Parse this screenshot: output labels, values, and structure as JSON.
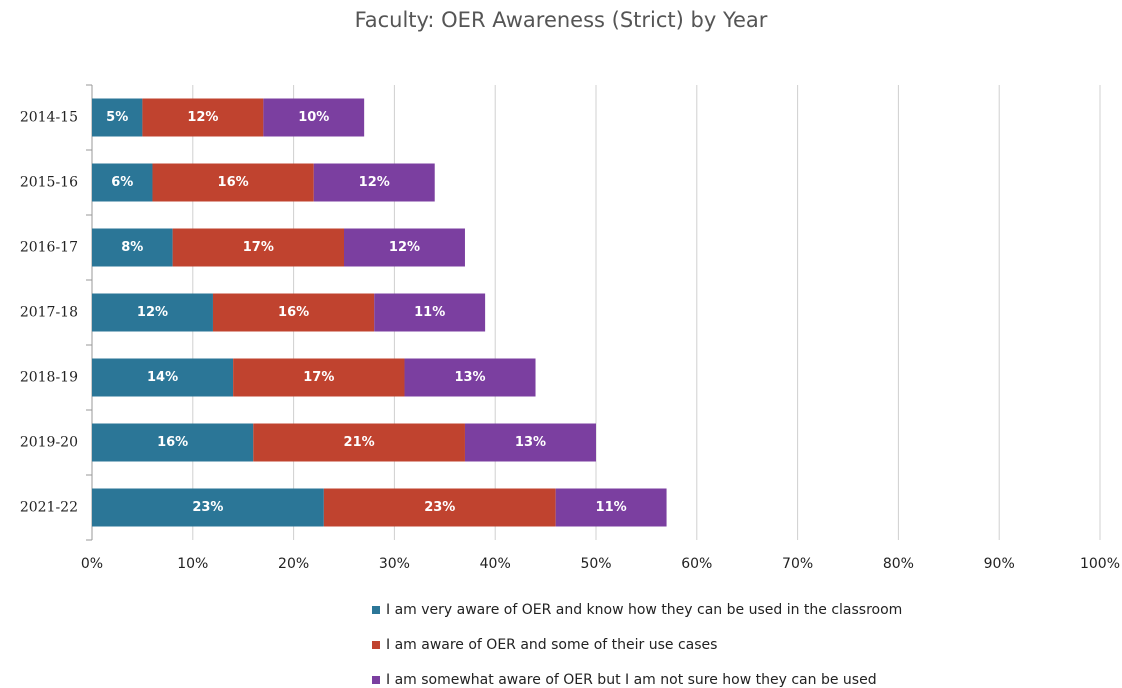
{
  "chart_data": {
    "type": "stacked-barh",
    "title": "Faculty: OER Awareness (Strict) by Year",
    "categories": [
      "2014-15",
      "2015-16",
      "2016-17",
      "2017-18",
      "2018-19",
      "2019-20",
      "2021-22"
    ],
    "series": [
      {
        "name": "I am very aware of OER and know how they can be used in the classroom",
        "color": "#2b7697",
        "values": [
          5,
          6,
          8,
          12,
          14,
          16,
          23
        ],
        "value_labels": [
          "5%",
          "6%",
          "8%",
          "12%",
          "14%",
          "16%",
          "23%"
        ]
      },
      {
        "name": "I am aware of OER and some of their use cases",
        "color": "#c0432f",
        "values": [
          12,
          16,
          17,
          16,
          17,
          21,
          23
        ],
        "value_labels": [
          "12%",
          "16%",
          "17%",
          "16%",
          "17%",
          "21%",
          "23%"
        ]
      },
      {
        "name": "I am somewhat aware of OER but I am not sure how they can be used",
        "color": "#7b3fa0",
        "values": [
          10,
          12,
          12,
          11,
          13,
          13,
          11
        ],
        "value_labels": [
          "10%",
          "12%",
          "12%",
          "11%",
          "13%",
          "13%",
          "11%"
        ]
      }
    ],
    "xlim": [
      0,
      100
    ],
    "xticks": [
      {
        "value": 0,
        "label": "0%"
      },
      {
        "value": 10,
        "label": "10%"
      },
      {
        "value": 20,
        "label": "20%"
      },
      {
        "value": 30,
        "label": "30%"
      },
      {
        "value": 40,
        "label": "40%"
      },
      {
        "value": 50,
        "label": "50%"
      },
      {
        "value": 60,
        "label": "60%"
      },
      {
        "value": 70,
        "label": "70%"
      },
      {
        "value": 80,
        "label": "80%"
      },
      {
        "value": 90,
        "label": "90%"
      },
      {
        "value": 100,
        "label": "100%"
      }
    ],
    "grid": true,
    "legend": "bottom"
  }
}
